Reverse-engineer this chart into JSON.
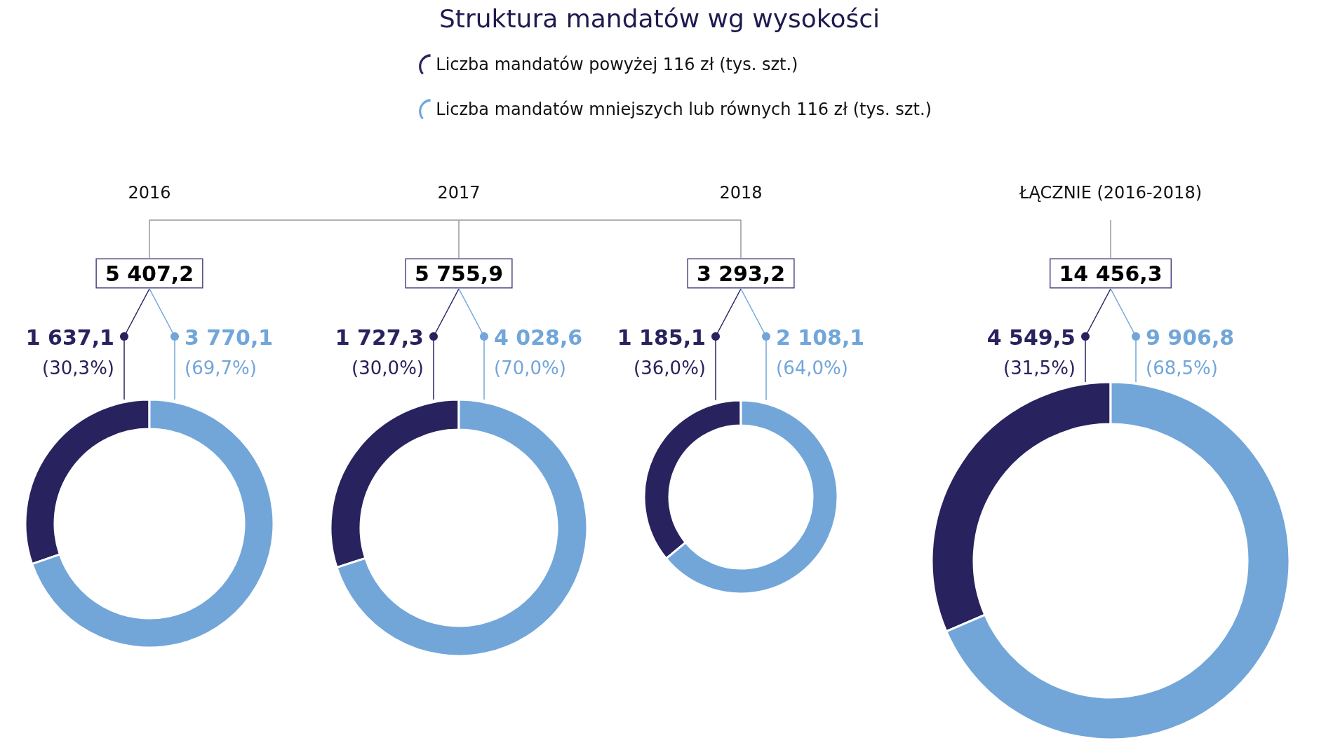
{
  "chart_data": [
    {
      "type": "donut",
      "subtitle": "2016",
      "categories": [
        null,
        null
      ],
      "values": [
        1637.1,
        3770.1
      ],
      "colors": [
        "#28235e",
        "#72a6d9"
      ],
      "value_labels": [
        "1 637,1\n(30,3%)",
        "3 770,1\n(69,7%)"
      ],
      "annotations": [
        "5 407,2"
      ]
    },
    {
      "type": "donut",
      "subtitle": "2017",
      "categories": [
        null,
        null
      ],
      "values": [
        1727.3,
        4028.6
      ],
      "colors": [
        "#28235e",
        "#72a6d9"
      ],
      "value_labels": [
        "1 727,3\n(30,0%)",
        "4 028,6\n(70,0%)"
      ],
      "annotations": [
        "5 755,9"
      ]
    },
    {
      "type": "donut",
      "title": "Struktura mandatów wg wysokości",
      "subtitle": "2018",
      "legend": "top",
      "categories": [
        "Liczba mandatów powyżej 116 zł (tys. szt.)",
        "Liczba mandatów mniejszych lub równych 116 zł (tys. szt.)"
      ],
      "values": [
        1185.1,
        2108.1
      ],
      "colors": [
        "#28235e",
        "#72a6d9"
      ],
      "value_labels": [
        "1 185,1\n(36,0%)",
        "2 108,1\n(64,0%)"
      ],
      "annotations": [
        "3 293,2"
      ]
    },
    {
      "type": "donut",
      "subtitle": "ŁĄCZNIE (2016-2018)",
      "categories": [
        null,
        null
      ],
      "values": [
        4549.5,
        9906.8
      ],
      "colors": [
        "#28235e",
        "#72a6d9"
      ],
      "value_labels": [
        "4 549,5\n(31,5%)",
        "9 906,8\n(68,5%)"
      ],
      "annotations": [
        "14 456,3"
      ]
    }
  ]
}
